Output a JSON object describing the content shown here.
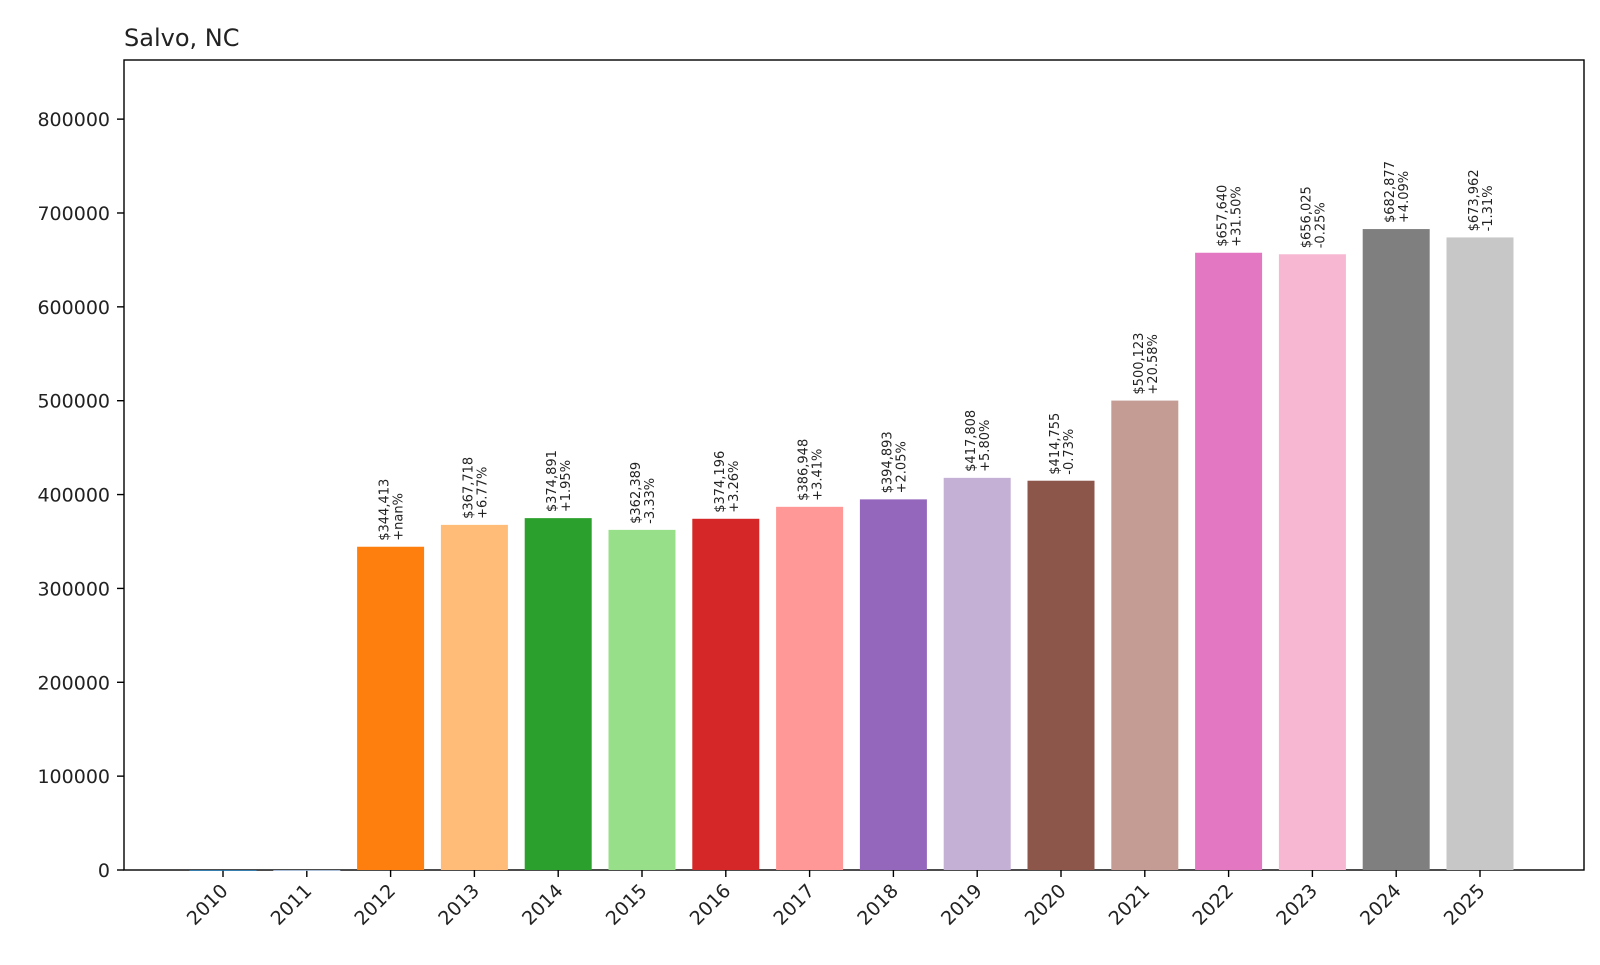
{
  "chart_data": {
    "type": "bar",
    "title": "Salvo, NC",
    "xlabel": "",
    "ylabel": "",
    "ylim": [
      0,
      863000
    ],
    "yticks": [
      0,
      100000,
      200000,
      300000,
      400000,
      500000,
      600000,
      700000,
      800000
    ],
    "ytick_labels": [
      "0",
      "100000",
      "200000",
      "300000",
      "400000",
      "500000",
      "600000",
      "700000",
      "800000"
    ],
    "grid": false,
    "categories": [
      "2010",
      "2011",
      "2012",
      "2013",
      "2014",
      "2015",
      "2016",
      "2017",
      "2018",
      "2019",
      "2020",
      "2021",
      "2022",
      "2023",
      "2024",
      "2025"
    ],
    "values": [
      0,
      0,
      344413,
      367718,
      374891,
      362389,
      374196,
      386948,
      394893,
      417808,
      414755,
      500123,
      657640,
      656025,
      682877,
      673962
    ],
    "value_labels": [
      "",
      "",
      "$344,413",
      "$367,718",
      "$374,891",
      "$362,389",
      "$374,196",
      "$386,948",
      "$394,893",
      "$417,808",
      "$414,755",
      "$500,123",
      "$657,640",
      "$656,025",
      "$682,877",
      "$673,962"
    ],
    "change_labels": [
      "",
      "",
      "+nan%",
      "+6.77%",
      "+1.95%",
      "-3.33%",
      "+3.26%",
      "+3.41%",
      "+2.05%",
      "+5.80%",
      "-0.73%",
      "+20.58%",
      "+31.50%",
      "-0.25%",
      "+4.09%",
      "-1.31%"
    ],
    "colors": [
      "#1f77b4",
      "#aec7e8",
      "#ff7f0e",
      "#ffbb78",
      "#2ca02c",
      "#98df8a",
      "#d62728",
      "#ff9896",
      "#9467bd",
      "#c5b0d5",
      "#8c564b",
      "#c49c94",
      "#e377c2",
      "#f7b6d2",
      "#7f7f7f",
      "#c7c7c7"
    ]
  }
}
